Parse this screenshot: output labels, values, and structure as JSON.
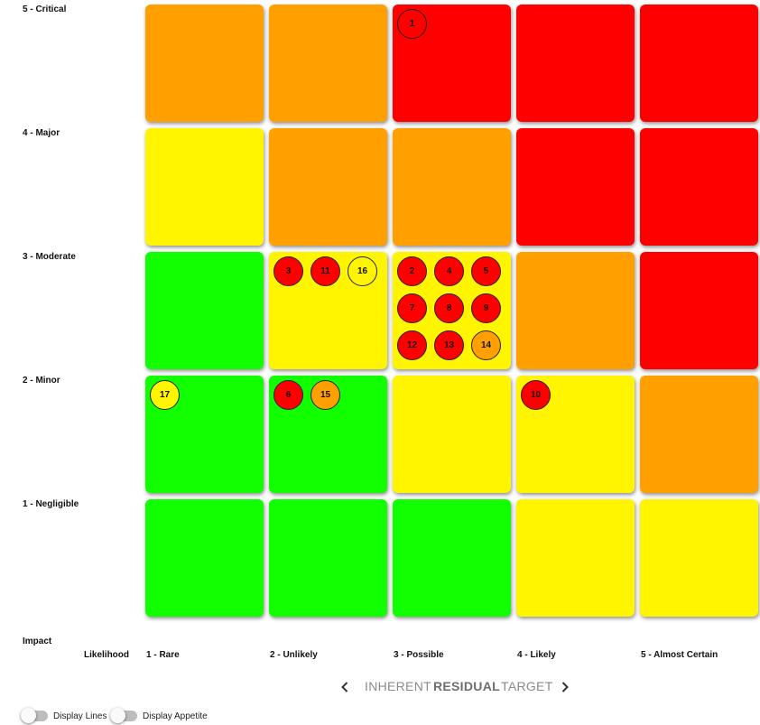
{
  "colors": {
    "green": "#11ff00",
    "yellow": "#fff500",
    "orange": "#ff9f00",
    "red": "#ff0000",
    "bubble_red": "#ff0000",
    "bubble_orange": "#ff9f00",
    "bubble_yellow": "#fff500"
  },
  "axis": {
    "impact_title": "Impact",
    "likelihood_title": "Likelihood"
  },
  "impact_levels": [
    "5 - Critical",
    "4 - Major",
    "3 - Moderate",
    "2 - Minor",
    "1 - Negligible"
  ],
  "likelihood_levels": [
    "1 - Rare",
    "2 - Unlikely",
    "3 - Possible",
    "4 - Likely",
    "5 - Almost Certain"
  ],
  "heatmap_colors": [
    [
      "orange",
      "orange",
      "red",
      "red",
      "red"
    ],
    [
      "yellow",
      "orange",
      "orange",
      "red",
      "red"
    ],
    [
      "green",
      "yellow",
      "yellow",
      "orange",
      "red"
    ],
    [
      "green",
      "green",
      "yellow",
      "yellow",
      "orange"
    ],
    [
      "green",
      "green",
      "green",
      "yellow",
      "yellow"
    ]
  ],
  "risks": [
    {
      "id": "1",
      "impact": 5,
      "likelihood": 3,
      "color": "none"
    },
    {
      "id": "3",
      "impact": 3,
      "likelihood": 2,
      "color": "bubble_red"
    },
    {
      "id": "11",
      "impact": 3,
      "likelihood": 2,
      "color": "bubble_red"
    },
    {
      "id": "16",
      "impact": 3,
      "likelihood": 2,
      "color": "bubble_yellow"
    },
    {
      "id": "2",
      "impact": 3,
      "likelihood": 3,
      "color": "bubble_red"
    },
    {
      "id": "4",
      "impact": 3,
      "likelihood": 3,
      "color": "bubble_red"
    },
    {
      "id": "5",
      "impact": 3,
      "likelihood": 3,
      "color": "bubble_red"
    },
    {
      "id": "7",
      "impact": 3,
      "likelihood": 3,
      "color": "bubble_red"
    },
    {
      "id": "8",
      "impact": 3,
      "likelihood": 3,
      "color": "bubble_red"
    },
    {
      "id": "9",
      "impact": 3,
      "likelihood": 3,
      "color": "bubble_red"
    },
    {
      "id": "12",
      "impact": 3,
      "likelihood": 3,
      "color": "bubble_red"
    },
    {
      "id": "13",
      "impact": 3,
      "likelihood": 3,
      "color": "bubble_red"
    },
    {
      "id": "14",
      "impact": 3,
      "likelihood": 3,
      "color": "bubble_orange"
    },
    {
      "id": "17",
      "impact": 2,
      "likelihood": 1,
      "color": "bubble_yellow"
    },
    {
      "id": "6",
      "impact": 2,
      "likelihood": 2,
      "color": "bubble_red"
    },
    {
      "id": "15",
      "impact": 2,
      "likelihood": 2,
      "color": "bubble_orange"
    },
    {
      "id": "10",
      "impact": 2,
      "likelihood": 4,
      "color": "bubble_red"
    }
  ],
  "views": {
    "inherent": "INHERENT",
    "residual": "RESIDUAL",
    "target": "TARGET",
    "active": "residual",
    "prev_icon": "chevron-left-icon",
    "next_icon": "chevron-right-icon"
  },
  "toggles": {
    "display_lines": {
      "label": "Display Lines",
      "on": false
    },
    "display_appetite": {
      "label": "Display Appetite",
      "on": false
    }
  }
}
